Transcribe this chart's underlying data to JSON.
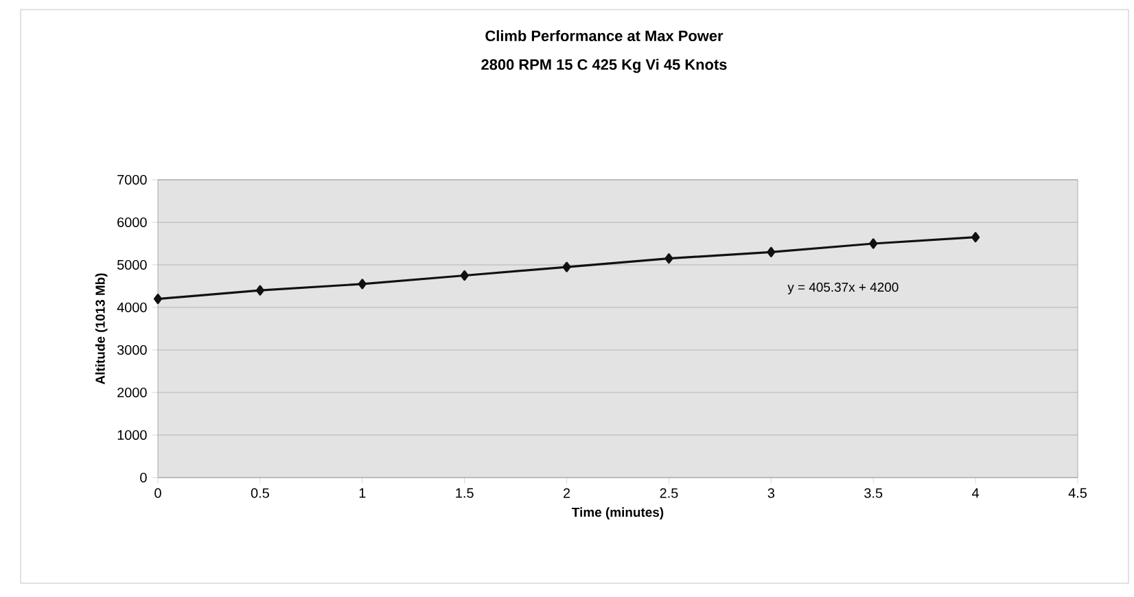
{
  "chart_data": {
    "type": "line",
    "title": "Climb Performance at Max Power",
    "subtitle": "2800 RPM    15 C 425 Kg Vi  45 Knots",
    "xlabel": "Time (minutes)",
    "ylabel": "Altitude (1013 Mb)",
    "x": [
      0,
      0.5,
      1,
      1.5,
      2,
      2.5,
      3,
      3.5,
      4
    ],
    "series": [
      {
        "color": "#111111",
        "values": [
          4200,
          4400,
          4550,
          4750,
          4950,
          5150,
          5300,
          5500,
          5650
        ]
      }
    ],
    "xlim": [
      0,
      4.5
    ],
    "ylim": [
      0,
      7000
    ],
    "xticks": [
      0,
      0.5,
      1,
      1.5,
      2,
      2.5,
      3,
      3.5,
      4,
      4.5
    ],
    "yticks": [
      0,
      1000,
      2000,
      3000,
      4000,
      5000,
      6000,
      7000
    ],
    "annotations": [
      "y = 405.37x + 4200"
    ],
    "grid": "y",
    "marker": "diamond",
    "line_style": "solid"
  }
}
